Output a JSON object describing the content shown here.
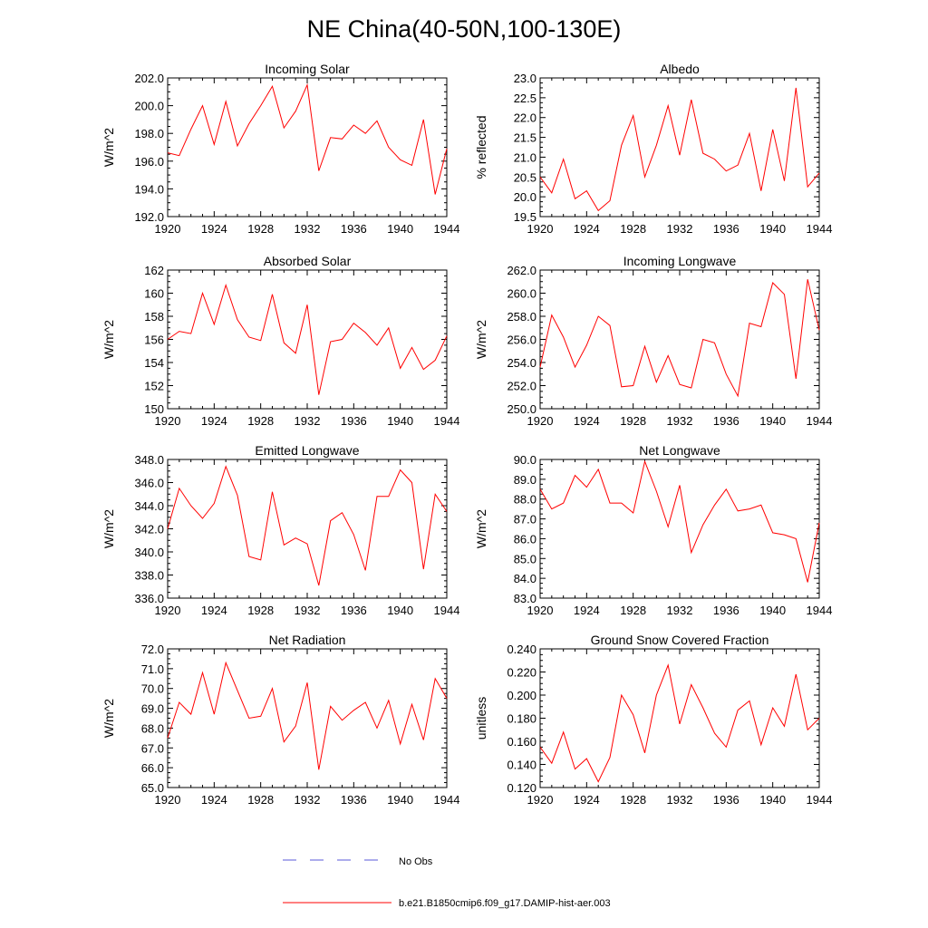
{
  "figure": {
    "title": "NE China(40-50N,100-130E)",
    "legend": [
      {
        "label": "No Obs",
        "style": "dashed",
        "color": "#5a5ad8"
      },
      {
        "label": "b.e21.B1850cmip6.f09_g17.DAMIP-hist-aer.003",
        "style": "solid",
        "color": "#ff0000"
      }
    ]
  },
  "chart_data": [
    {
      "type": "line",
      "title": "Incoming Solar",
      "ylabel": "W/m^2",
      "xlim": [
        1920,
        1944
      ],
      "ylim": [
        192.0,
        202.0
      ],
      "xticks": [
        "1920",
        "1924",
        "1928",
        "1932",
        "1936",
        "1940",
        "1944"
      ],
      "yticks": [
        "192.0",
        "194.0",
        "196.0",
        "198.0",
        "200.0",
        "202.0"
      ],
      "series": [
        {
          "color": "#ff0000",
          "x": [
            1920,
            1921,
            1922,
            1923,
            1924,
            1925,
            1926,
            1927,
            1928,
            1929,
            1930,
            1931,
            1932,
            1933,
            1934,
            1935,
            1936,
            1937,
            1938,
            1939,
            1940,
            1941,
            1942,
            1943,
            1944
          ],
          "values": [
            196.6,
            196.4,
            198.3,
            200.0,
            197.2,
            200.3,
            197.1,
            198.7,
            200.0,
            201.4,
            198.4,
            199.6,
            201.5,
            195.3,
            197.7,
            197.6,
            198.6,
            198.0,
            198.9,
            197.0,
            196.1,
            195.7,
            199.0,
            193.6,
            196.9
          ]
        }
      ]
    },
    {
      "type": "line",
      "title": "Albedo",
      "ylabel": "% reflected",
      "xlim": [
        1920,
        1944
      ],
      "ylim": [
        19.5,
        23.0
      ],
      "xticks": [
        "1920",
        "1924",
        "1928",
        "1932",
        "1936",
        "1940",
        "1944"
      ],
      "yticks": [
        "19.5",
        "20.0",
        "20.5",
        "21.0",
        "21.5",
        "22.0",
        "22.5",
        "23.0"
      ],
      "series": [
        {
          "color": "#ff0000",
          "x": [
            1920,
            1921,
            1922,
            1923,
            1924,
            1925,
            1926,
            1927,
            1928,
            1929,
            1930,
            1931,
            1932,
            1933,
            1934,
            1935,
            1936,
            1937,
            1938,
            1939,
            1940,
            1941,
            1942,
            1943,
            1944
          ],
          "values": [
            20.5,
            20.1,
            20.95,
            19.95,
            20.15,
            19.65,
            19.9,
            21.3,
            22.05,
            20.5,
            21.3,
            22.3,
            21.05,
            22.45,
            21.1,
            20.95,
            20.65,
            20.8,
            21.6,
            20.15,
            21.7,
            20.4,
            22.75,
            20.25,
            20.6
          ]
        }
      ]
    },
    {
      "type": "line",
      "title": "Absorbed Solar",
      "ylabel": "W/m^2",
      "xlim": [
        1920,
        1944
      ],
      "ylim": [
        150,
        162
      ],
      "xticks": [
        "1920",
        "1924",
        "1928",
        "1932",
        "1936",
        "1940",
        "1944"
      ],
      "yticks": [
        "150",
        "152",
        "154",
        "156",
        "158",
        "160",
        "162"
      ],
      "series": [
        {
          "color": "#ff0000",
          "x": [
            1920,
            1921,
            1922,
            1923,
            1924,
            1925,
            1926,
            1927,
            1928,
            1929,
            1930,
            1931,
            1932,
            1933,
            1934,
            1935,
            1936,
            1937,
            1938,
            1939,
            1940,
            1941,
            1942,
            1943,
            1944
          ],
          "values": [
            156.0,
            156.7,
            156.5,
            160.0,
            157.3,
            160.7,
            157.7,
            156.2,
            155.9,
            159.9,
            155.7,
            154.8,
            159.0,
            151.2,
            155.8,
            156.0,
            157.4,
            156.6,
            155.5,
            157.0,
            153.5,
            155.3,
            153.4,
            154.2,
            156.3
          ]
        }
      ]
    },
    {
      "type": "line",
      "title": "Incoming Longwave",
      "ylabel": "W/m^2",
      "xlim": [
        1920,
        1944
      ],
      "ylim": [
        250.0,
        262.0
      ],
      "xticks": [
        "1920",
        "1924",
        "1928",
        "1932",
        "1936",
        "1940",
        "1944"
      ],
      "yticks": [
        "250.0",
        "252.0",
        "254.0",
        "256.0",
        "258.0",
        "260.0",
        "262.0"
      ],
      "series": [
        {
          "color": "#ff0000",
          "x": [
            1920,
            1921,
            1922,
            1923,
            1924,
            1925,
            1926,
            1927,
            1928,
            1929,
            1930,
            1931,
            1932,
            1933,
            1934,
            1935,
            1936,
            1937,
            1938,
            1939,
            1940,
            1941,
            1942,
            1943,
            1944
          ],
          "values": [
            253.6,
            258.1,
            256.2,
            253.6,
            255.5,
            258.0,
            257.2,
            251.9,
            252.0,
            255.4,
            252.3,
            254.6,
            252.1,
            251.8,
            256.0,
            255.7,
            253.0,
            251.1,
            257.4,
            257.1,
            260.9,
            259.9,
            252.6,
            261.2,
            256.8
          ]
        }
      ]
    },
    {
      "type": "line",
      "title": "Emitted Longwave",
      "ylabel": "W/m^2",
      "xlim": [
        1920,
        1944
      ],
      "ylim": [
        336.0,
        348.0
      ],
      "xticks": [
        "1920",
        "1924",
        "1928",
        "1932",
        "1936",
        "1940",
        "1944"
      ],
      "yticks": [
        "336.0",
        "338.0",
        "340.0",
        "342.0",
        "344.0",
        "346.0",
        "348.0"
      ],
      "series": [
        {
          "color": "#ff0000",
          "x": [
            1920,
            1921,
            1922,
            1923,
            1924,
            1925,
            1926,
            1927,
            1928,
            1929,
            1930,
            1931,
            1932,
            1933,
            1934,
            1935,
            1936,
            1937,
            1938,
            1939,
            1940,
            1941,
            1942,
            1943,
            1944
          ],
          "values": [
            342.0,
            345.5,
            344.0,
            342.9,
            344.2,
            347.4,
            344.9,
            339.6,
            339.3,
            345.2,
            340.6,
            341.2,
            340.7,
            337.1,
            342.7,
            343.4,
            341.5,
            338.4,
            344.8,
            344.8,
            347.1,
            346.0,
            338.5,
            345.0,
            343.5
          ]
        }
      ]
    },
    {
      "type": "line",
      "title": "Net Longwave",
      "ylabel": "W/m^2",
      "xlim": [
        1920,
        1944
      ],
      "ylim": [
        83.0,
        90.0
      ],
      "xticks": [
        "1920",
        "1924",
        "1928",
        "1932",
        "1936",
        "1940",
        "1944"
      ],
      "yticks": [
        "83.0",
        "84.0",
        "85.0",
        "86.0",
        "87.0",
        "88.0",
        "89.0",
        "90.0"
      ],
      "series": [
        {
          "color": "#ff0000",
          "x": [
            1920,
            1921,
            1922,
            1923,
            1924,
            1925,
            1926,
            1927,
            1928,
            1929,
            1930,
            1931,
            1932,
            1933,
            1934,
            1935,
            1936,
            1937,
            1938,
            1939,
            1940,
            1941,
            1942,
            1943,
            1944
          ],
          "values": [
            88.5,
            87.5,
            87.8,
            89.2,
            88.6,
            89.5,
            87.8,
            87.8,
            87.3,
            89.9,
            88.4,
            86.6,
            88.7,
            85.3,
            86.7,
            87.7,
            88.5,
            87.4,
            87.5,
            87.7,
            86.3,
            86.2,
            86.0,
            83.8,
            86.8
          ]
        }
      ]
    },
    {
      "type": "line",
      "title": "Net Radiation",
      "ylabel": "W/m^2",
      "xlim": [
        1920,
        1944
      ],
      "ylim": [
        65.0,
        72.0
      ],
      "xticks": [
        "1920",
        "1924",
        "1928",
        "1932",
        "1936",
        "1940",
        "1944"
      ],
      "yticks": [
        "65.0",
        "66.0",
        "67.0",
        "68.0",
        "69.0",
        "70.0",
        "71.0",
        "72.0"
      ],
      "series": [
        {
          "color": "#ff0000",
          "x": [
            1920,
            1921,
            1922,
            1923,
            1924,
            1925,
            1926,
            1927,
            1928,
            1929,
            1930,
            1931,
            1932,
            1933,
            1934,
            1935,
            1936,
            1937,
            1938,
            1939,
            1940,
            1941,
            1942,
            1943,
            1944
          ],
          "values": [
            67.5,
            69.3,
            68.7,
            70.8,
            68.7,
            71.3,
            69.9,
            68.5,
            68.6,
            70.0,
            67.3,
            68.1,
            70.3,
            65.9,
            69.1,
            68.4,
            68.9,
            69.3,
            68.0,
            69.4,
            67.2,
            69.2,
            67.4,
            70.5,
            69.5
          ]
        }
      ]
    },
    {
      "type": "line",
      "title": "Ground Snow Covered Fraction",
      "ylabel": "unitless",
      "xlim": [
        1920,
        1944
      ],
      "ylim": [
        0.12,
        0.24
      ],
      "xticks": [
        "1920",
        "1924",
        "1928",
        "1932",
        "1936",
        "1940",
        "1944"
      ],
      "yticks": [
        "0.120",
        "0.140",
        "0.160",
        "0.180",
        "0.200",
        "0.220",
        "0.240"
      ],
      "series": [
        {
          "color": "#ff0000",
          "x": [
            1920,
            1921,
            1922,
            1923,
            1924,
            1925,
            1926,
            1927,
            1928,
            1929,
            1930,
            1931,
            1932,
            1933,
            1934,
            1935,
            1936,
            1937,
            1938,
            1939,
            1940,
            1941,
            1942,
            1943,
            1944
          ],
          "values": [
            0.155,
            0.141,
            0.168,
            0.136,
            0.145,
            0.125,
            0.146,
            0.2,
            0.183,
            0.15,
            0.2,
            0.226,
            0.175,
            0.209,
            0.189,
            0.167,
            0.155,
            0.187,
            0.195,
            0.157,
            0.189,
            0.173,
            0.218,
            0.17,
            0.18
          ]
        }
      ]
    }
  ]
}
